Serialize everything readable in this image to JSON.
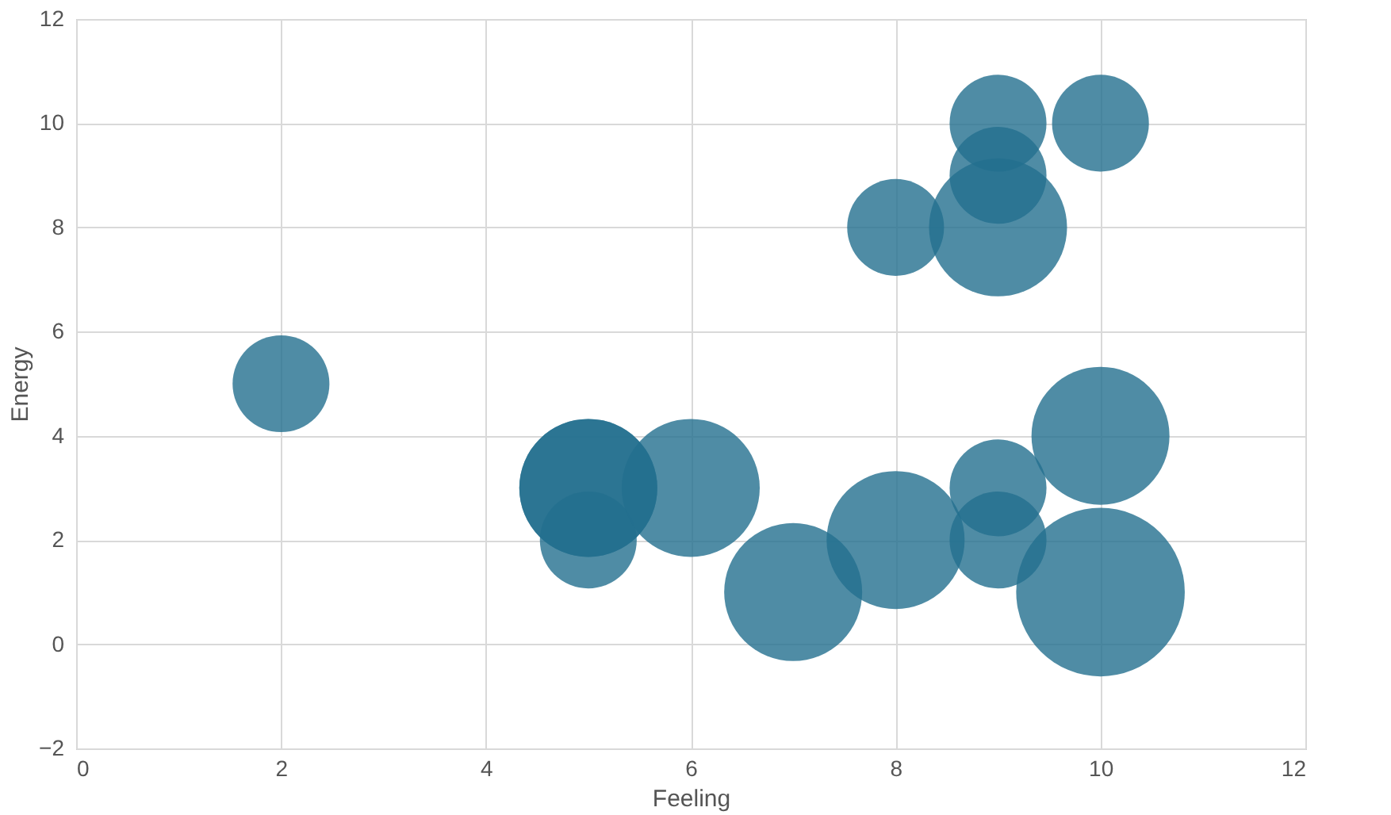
{
  "chart_data": {
    "type": "bubble",
    "xlabel": "Feeling",
    "ylabel": "Energy",
    "series": [
      {
        "color": "#236f8f",
        "x": [
          2,
          5,
          5,
          5,
          6,
          7,
          8,
          9,
          9,
          10,
          10,
          8,
          9,
          9,
          9,
          10
        ],
        "values": [
          5,
          3,
          3,
          2,
          3,
          1,
          2,
          3,
          2,
          4,
          1,
          8,
          8,
          9,
          10,
          10
        ],
        "sizes": [
          0.33,
          0.67,
          0.67,
          0.33,
          0.67,
          0.67,
          0.67,
          0.33,
          0.33,
          0.67,
          1,
          0.33,
          0.67,
          0.33,
          0.33,
          0.33
        ]
      }
    ],
    "xlim": [
      0,
      12
    ],
    "xticks": [
      0,
      2,
      4,
      6,
      8,
      10,
      12
    ],
    "ylim": [
      -2,
      12
    ],
    "yticks": [
      -2,
      0,
      2,
      4,
      6,
      8,
      10,
      12
    ],
    "grid": true
  }
}
